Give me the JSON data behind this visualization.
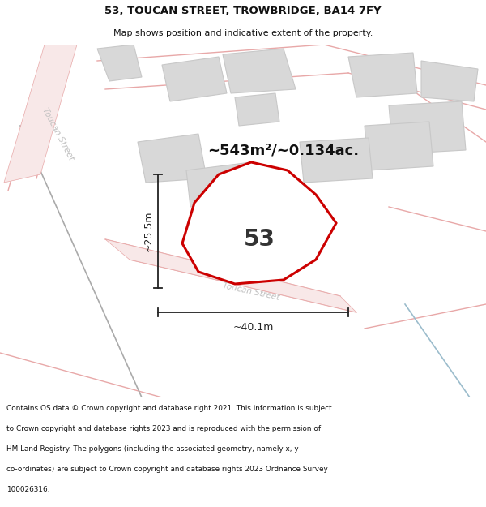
{
  "title_line1": "53, TOUCAN STREET, TROWBRIDGE, BA14 7FY",
  "title_line2": "Map shows position and indicative extent of the property.",
  "area_text": "~543m²/~0.134ac.",
  "number_label": "53",
  "width_label": "~40.1m",
  "height_label": "~25.5m",
  "street_label_diagonal": "Toucan Street",
  "street_label_left": "Toucan Street",
  "footer_lines": [
    "Contains OS data © Crown copyright and database right 2021. This information is subject",
    "to Crown copyright and database rights 2023 and is reproduced with the permission of",
    "HM Land Registry. The polygons (including the associated geometry, namely x, y",
    "co-ordinates) are subject to Crown copyright and database rights 2023 Ordnance Survey",
    "100026316."
  ],
  "bg_color": "#ffffff",
  "map_bg": "#ffffff",
  "plot_fill": "#ffffff",
  "plot_edge": "#cc0000",
  "other_fill": "#d8d8d8",
  "other_edge": "#c8c8c8",
  "road_color": "#f0c0c0",
  "road_outline": "#e8a8a8",
  "dim_color": "#222222",
  "street_text_color": "#c0c0c0",
  "area_text_color": "#111111",
  "number_color": "#333333",
  "footer_bg": "#ffffff",
  "title_color": "#111111",
  "dark_line_color": "#888888",
  "blue_line_color": "#9bbccc"
}
